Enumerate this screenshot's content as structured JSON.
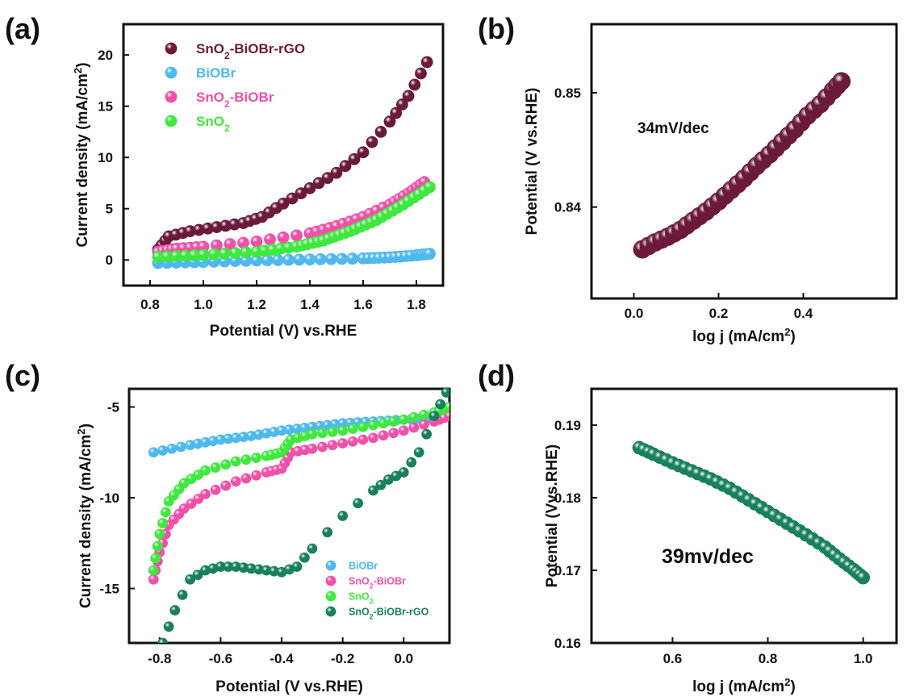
{
  "chart_data": [
    {
      "panel": "(a)",
      "type": "scatter",
      "xlabel": "Potential (V) vs.RHE",
      "ylabel": "Current density (mA/cm²)",
      "xlim": [
        0.7,
        1.9
      ],
      "ylim": [
        -2.5,
        23
      ],
      "xticks": [
        0.8,
        1.0,
        1.2,
        1.4,
        1.6,
        1.8
      ],
      "xtick_labels": [
        "0.8",
        "1.0",
        "1.2",
        "1.4",
        "1.6",
        "1.8"
      ],
      "yticks": [
        0,
        5,
        10,
        15,
        20
      ],
      "ytick_labels": [
        "0",
        "5",
        "10",
        "15",
        "20"
      ],
      "legend_position": "top-left",
      "series": [
        {
          "name": "SnO₂-BiOBr-rGO",
          "color": "#6b1a3c",
          "x": [
            0.83,
            0.87,
            0.95,
            1.05,
            1.15,
            1.22,
            1.3,
            1.4,
            1.5,
            1.6,
            1.7,
            1.77,
            1.84
          ],
          "y": [
            1.0,
            2.3,
            2.8,
            3.2,
            3.6,
            4.2,
            5.5,
            7.0,
            8.5,
            10.5,
            13.5,
            16.0,
            19.3
          ]
        },
        {
          "name": "BiOBr",
          "color": "#4fb8ec",
          "x": [
            0.83,
            1.0,
            1.2,
            1.4,
            1.6,
            1.7,
            1.8,
            1.85
          ],
          "y": [
            -0.3,
            -0.2,
            -0.05,
            0.05,
            0.15,
            0.25,
            0.45,
            0.6
          ]
        },
        {
          "name": "SnO₂-BiOBr",
          "color": "#f050a8",
          "x": [
            0.83,
            0.9,
            1.0,
            1.2,
            1.4,
            1.5,
            1.6,
            1.7,
            1.77,
            1.83
          ],
          "y": [
            0.8,
            1.1,
            1.3,
            1.8,
            2.6,
            3.3,
            4.2,
            5.4,
            6.5,
            7.6
          ]
        },
        {
          "name": "SnO₂",
          "color": "#3ee83e",
          "x": [
            0.83,
            1.0,
            1.2,
            1.35,
            1.45,
            1.55,
            1.65,
            1.75,
            1.85
          ],
          "y": [
            0.3,
            0.5,
            0.8,
            1.3,
            1.9,
            2.8,
            3.9,
            5.4,
            7.1
          ]
        }
      ]
    },
    {
      "panel": "(b)",
      "type": "scatter",
      "xlabel": "log j (mA/cm²)",
      "ylabel": "Potential (V vs.RHE)",
      "xlim": [
        -0.1,
        0.62
      ],
      "ylim": [
        0.832,
        0.856
      ],
      "xticks": [
        0.0,
        0.2,
        0.4
      ],
      "xtick_labels": [
        "0.0",
        "0.2",
        "0.4"
      ],
      "yticks": [
        0.84,
        0.85
      ],
      "ytick_labels": [
        "0.84",
        "0.85"
      ],
      "annotation": "34mV/dec",
      "series": [
        {
          "color": "#6b1a3c",
          "x": [
            0.02,
            0.05,
            0.08,
            0.11,
            0.14,
            0.17,
            0.2,
            0.23,
            0.26,
            0.29,
            0.32,
            0.35,
            0.38,
            0.41,
            0.44,
            0.47,
            0.49
          ],
          "y": [
            0.8363,
            0.8369,
            0.8374,
            0.838,
            0.8388,
            0.8396,
            0.8405,
            0.8415,
            0.8425,
            0.8436,
            0.8446,
            0.8457,
            0.8468,
            0.848,
            0.849,
            0.8502,
            0.851
          ]
        }
      ]
    },
    {
      "panel": "(c)",
      "type": "scatter",
      "xlabel": "Potential (V vs.RHE)",
      "ylabel": "Current density (mA/cm²)",
      "xlim": [
        -0.9,
        0.15
      ],
      "ylim": [
        -18,
        -4
      ],
      "xticks": [
        -0.8,
        -0.6,
        -0.4,
        -0.2,
        0.0
      ],
      "xtick_labels": [
        "-0.8",
        "-0.6",
        "-0.4",
        "-0.2",
        "0.0"
      ],
      "yticks": [
        -15,
        -10,
        -5
      ],
      "ytick_labels": [
        "-15",
        "-10",
        "-5"
      ],
      "legend_position": "bottom-right",
      "series": [
        {
          "name": "BiOBr",
          "color": "#4fb8ec",
          "x": [
            -0.82,
            -0.7,
            -0.6,
            -0.5,
            -0.4,
            -0.3,
            -0.2,
            -0.1,
            0.0,
            0.1,
            0.15
          ],
          "y": [
            -7.5,
            -7.1,
            -6.8,
            -6.6,
            -6.3,
            -6.1,
            -5.9,
            -5.8,
            -5.7,
            -5.6,
            -5.5
          ]
        },
        {
          "name": "SnO₂-BiOBr",
          "color": "#f050a8",
          "x": [
            -0.82,
            -0.8,
            -0.77,
            -0.72,
            -0.65,
            -0.55,
            -0.45,
            -0.4,
            -0.37,
            -0.3,
            -0.2,
            -0.1,
            0.0,
            0.1,
            0.15
          ],
          "y": [
            -14.5,
            -13.0,
            -11.5,
            -10.6,
            -9.8,
            -9.1,
            -8.6,
            -8.4,
            -7.5,
            -7.3,
            -7.0,
            -6.7,
            -6.3,
            -5.8,
            -5.5
          ]
        },
        {
          "name": "SnO₂",
          "color": "#3ee83e",
          "x": [
            -0.82,
            -0.8,
            -0.77,
            -0.72,
            -0.65,
            -0.55,
            -0.45,
            -0.4,
            -0.37,
            -0.3,
            -0.2,
            -0.1,
            0.0,
            0.1,
            0.15
          ],
          "y": [
            -14.0,
            -12.0,
            -10.2,
            -9.2,
            -8.5,
            -8.0,
            -7.7,
            -7.5,
            -6.8,
            -6.5,
            -6.3,
            -6.0,
            -5.7,
            -5.3,
            -5.0
          ]
        },
        {
          "name": "SnO₂-BiOBr-rGO",
          "color": "#18805a",
          "x": [
            -0.79,
            -0.75,
            -0.7,
            -0.65,
            -0.6,
            -0.55,
            -0.5,
            -0.45,
            -0.4,
            -0.35,
            -0.3,
            -0.2,
            -0.1,
            -0.05,
            0.0,
            0.05,
            0.1,
            0.14
          ],
          "y": [
            -18.0,
            -16.2,
            -14.5,
            -14.0,
            -13.8,
            -13.8,
            -13.9,
            -14.0,
            -14.1,
            -13.8,
            -12.8,
            -11.0,
            -9.6,
            -9.0,
            -8.6,
            -7.5,
            -5.5,
            -4.2
          ]
        }
      ]
    },
    {
      "panel": "(d)",
      "type": "scatter",
      "xlabel": "log j (mA/cm²)",
      "ylabel": "Potential (Vvs.RHE)",
      "xlim": [
        0.43,
        1.07
      ],
      "ylim": [
        0.16,
        0.195
      ],
      "xticks": [
        0.6,
        0.8,
        1.0
      ],
      "xtick_labels": [
        "0.6",
        "0.8",
        "1.0"
      ],
      "yticks": [
        0.16,
        0.17,
        0.18,
        0.19
      ],
      "ytick_labels": [
        "0.16",
        "0.17",
        "0.18",
        "0.19"
      ],
      "annotation": "39mv/dec",
      "series": [
        {
          "color": "#18805a",
          "x": [
            0.53,
            0.56,
            0.6,
            0.64,
            0.68,
            0.72,
            0.76,
            0.8,
            0.84,
            0.88,
            0.92,
            0.95,
            0.98,
            1.0
          ],
          "y": [
            0.1869,
            0.186,
            0.1848,
            0.1837,
            0.1826,
            0.1813,
            0.1797,
            0.1781,
            0.1765,
            0.1749,
            0.1732,
            0.1716,
            0.1701,
            0.169
          ]
        }
      ]
    }
  ]
}
